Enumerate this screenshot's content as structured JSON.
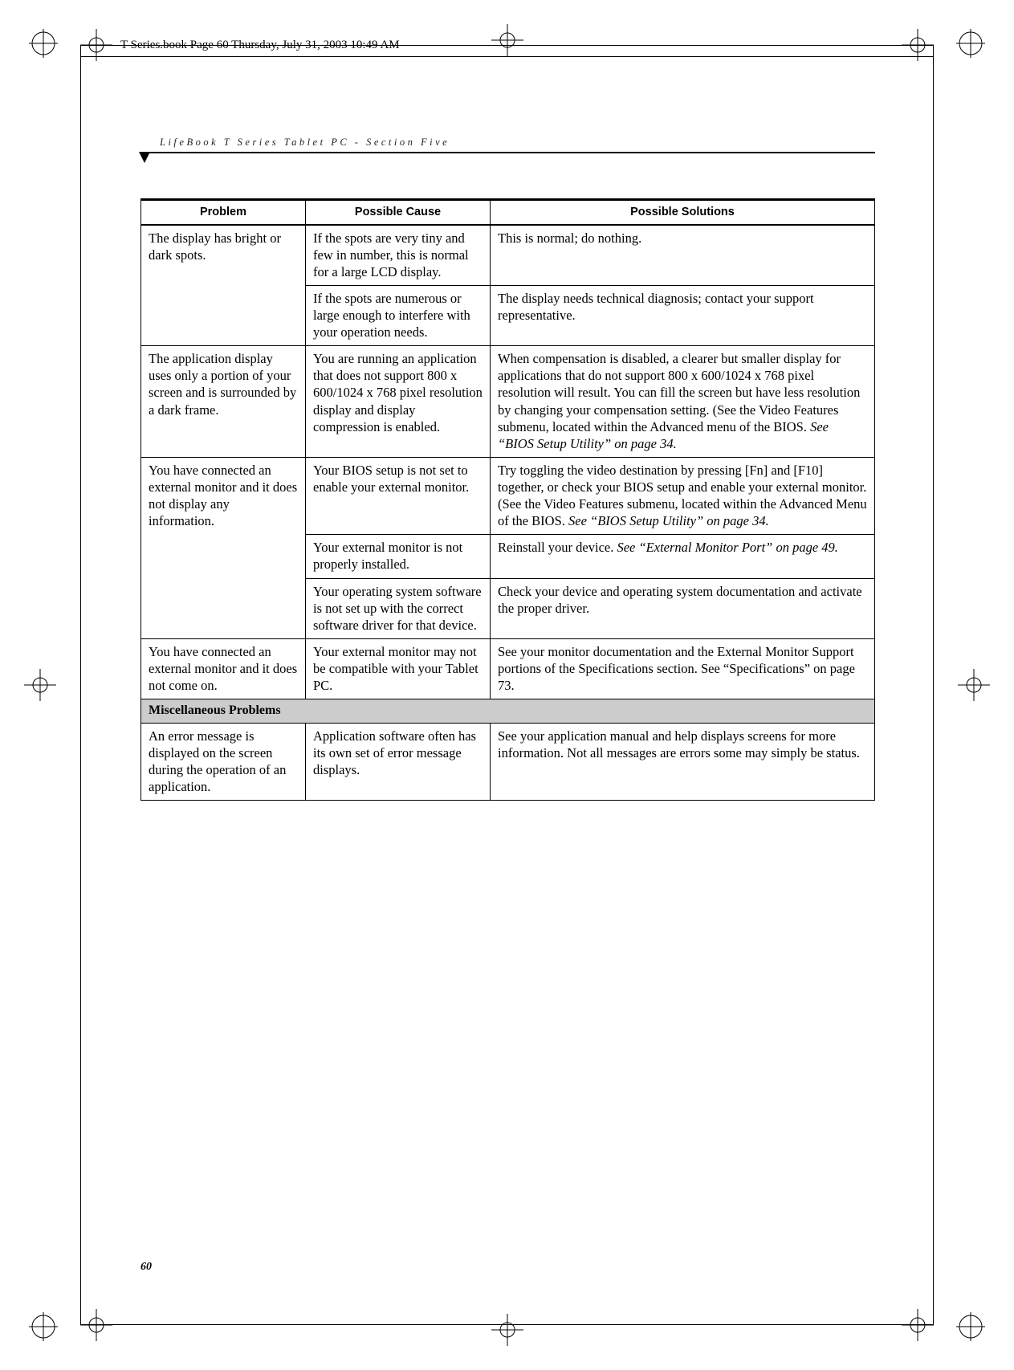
{
  "header_info": "T Series.book  Page 60  Thursday, July 31, 2003  10:49 AM",
  "running_head": "LifeBook T Series Tablet PC - Section Five",
  "page_number": "60",
  "table": {
    "headers": {
      "problem": "Problem",
      "cause": "Possible Cause",
      "solution": "Possible Solutions"
    },
    "rows": [
      {
        "problem": "The display has bright or dark spots.",
        "cause": "If the spots are very tiny and few in number, this is normal for a large LCD display.",
        "solution": "This is normal; do nothing.",
        "problem_rowspan": 2
      },
      {
        "cause": "If the spots are numerous or large enough to interfere with your operation needs.",
        "solution": "The display needs technical diagnosis; contact your support representative."
      },
      {
        "problem": "The application display uses only a portion of your screen and is surrounded by a dark frame.",
        "cause": "You are running an application that does not support 800 x 600/1024 x 768 pixel resolution display and display compression is enabled.",
        "solution_html": "When compensation is disabled, a clearer but smaller display for applications that do not support 800 x 600/1024 x 768 pixel resolution will result. You can fill the screen but have less resolution by changing your compensation setting. (See the Video Features submenu, located within the Advanced menu of the BIOS. <span class=\"ital\">See “BIOS Setup Utility” on page 34.</span>"
      },
      {
        "problem": "You have connected an external monitor and it does not display any information.",
        "cause": "Your BIOS setup is not set to enable your external monitor.",
        "solution_html": "Try toggling the video destination by pressing [Fn] and [F10] together, or check your BIOS setup and enable your external monitor. (See the Video Features submenu, located within the Advanced Menu of the BIOS. <span class=\"ital\">See “BIOS Setup Utility” on page 34.</span>",
        "problem_rowspan": 3
      },
      {
        "cause": "Your external monitor is not properly installed.",
        "solution_html": "Reinstall your device. <span class=\"ital\">See “External Monitor Port” on page 49.</span>"
      },
      {
        "cause": "Your operating system software is not set up with the correct software driver for that device.",
        "solution": "Check your device and operating system documentation and activate the proper driver."
      },
      {
        "problem": "You have connected an external monitor and it does not come on.",
        "cause": "Your external monitor may not be compatible with your Tablet PC.",
        "solution": "See your monitor documentation and the External Monitor Support portions of the Specifications section. See “Specifications” on page 73."
      }
    ],
    "section_label": "Miscellaneous Problems",
    "rows2": [
      {
        "problem": "An error message is displayed on the screen during the operation of an application.",
        "cause": "Application software often has its own set of error message displays.",
        "solution": "See your application manual and help displays screens for more information. Not all messages are errors some may simply be status."
      }
    ]
  },
  "colors": {
    "section_bg": "#cccccc",
    "text": "#000000",
    "background": "#ffffff"
  }
}
